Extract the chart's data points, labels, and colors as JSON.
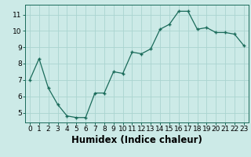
{
  "x": [
    0,
    1,
    2,
    3,
    4,
    5,
    6,
    7,
    8,
    9,
    10,
    11,
    12,
    13,
    14,
    15,
    16,
    17,
    18,
    19,
    20,
    21,
    22,
    23
  ],
  "y": [
    7.0,
    8.3,
    6.5,
    5.5,
    4.8,
    4.7,
    4.7,
    6.2,
    6.2,
    7.5,
    7.4,
    8.7,
    8.6,
    8.9,
    10.1,
    10.4,
    11.2,
    11.2,
    10.1,
    10.2,
    9.9,
    9.9,
    9.8,
    9.1
  ],
  "xlabel": "Humidex (Indice chaleur)",
  "line_color": "#1a6b5a",
  "marker": "+",
  "bg_color": "#cceae7",
  "grid_color": "#aad4d0",
  "xlim": [
    -0.5,
    23.5
  ],
  "ylim": [
    4.4,
    11.6
  ],
  "yticks": [
    5,
    6,
    7,
    8,
    9,
    10,
    11
  ],
  "xticks": [
    0,
    1,
    2,
    3,
    4,
    5,
    6,
    7,
    8,
    9,
    10,
    11,
    12,
    13,
    14,
    15,
    16,
    17,
    18,
    19,
    20,
    21,
    22,
    23
  ],
  "tick_label_fontsize": 6.5,
  "xlabel_fontsize": 8.5
}
